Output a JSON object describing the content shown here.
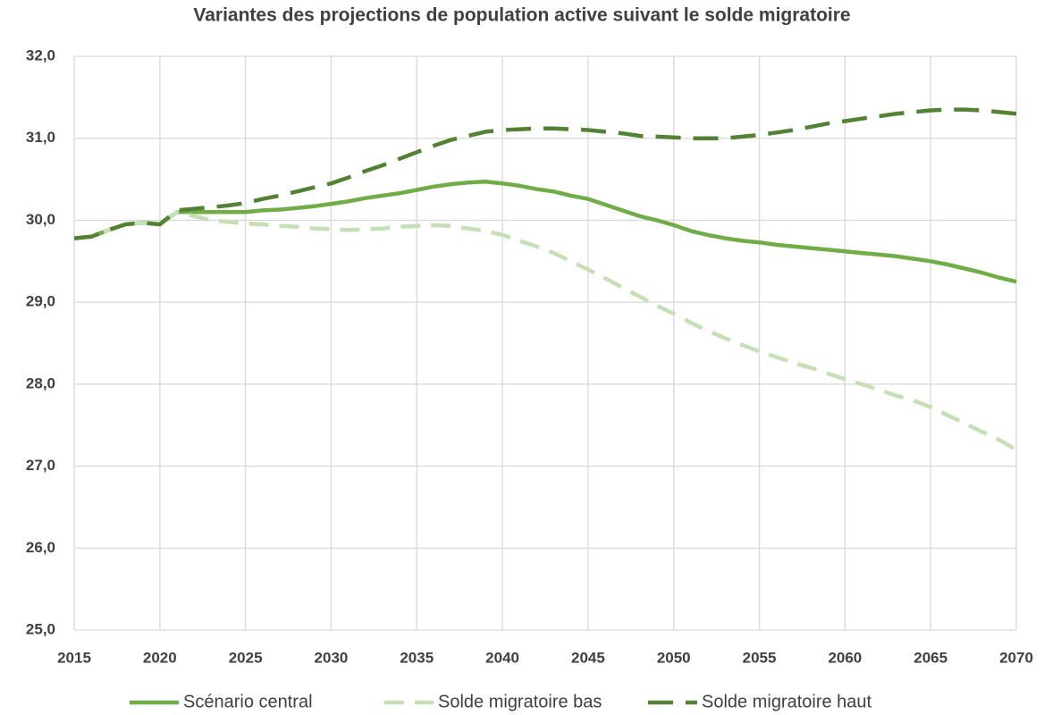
{
  "chart_data": {
    "type": "line",
    "title": "Variantes des projections de population active suivant le solde migratoire",
    "x": [
      2015,
      2016,
      2017,
      2018,
      2019,
      2020,
      2021,
      2022,
      2023,
      2024,
      2025,
      2026,
      2027,
      2028,
      2029,
      2030,
      2031,
      2032,
      2033,
      2034,
      2035,
      2036,
      2037,
      2038,
      2039,
      2040,
      2041,
      2042,
      2043,
      2044,
      2045,
      2046,
      2047,
      2048,
      2049,
      2050,
      2051,
      2052,
      2053,
      2054,
      2055,
      2056,
      2057,
      2058,
      2059,
      2060,
      2061,
      2062,
      2063,
      2064,
      2065,
      2066,
      2067,
      2068,
      2069,
      2070
    ],
    "series": [
      {
        "name": "Scénario central",
        "color": "#70ad47",
        "dash": "solid",
        "values": [
          29.78,
          29.8,
          29.88,
          29.95,
          29.97,
          29.95,
          30.1,
          30.1,
          30.1,
          30.1,
          30.1,
          30.12,
          30.13,
          30.15,
          30.17,
          30.2,
          30.23,
          30.27,
          30.3,
          30.33,
          30.37,
          30.41,
          30.44,
          30.46,
          30.47,
          30.45,
          30.42,
          30.38,
          30.35,
          30.3,
          30.26,
          30.19,
          30.12,
          30.05,
          30.0,
          29.94,
          29.87,
          29.82,
          29.78,
          29.75,
          29.73,
          29.7,
          29.68,
          29.66,
          29.64,
          29.62,
          29.6,
          29.58,
          29.56,
          29.53,
          29.5,
          29.46,
          29.41,
          29.36,
          29.3,
          29.25
        ]
      },
      {
        "name": "Solde migratoire bas",
        "color": "#c5e0b4",
        "dash": "dashed",
        "values": [
          29.78,
          29.8,
          29.88,
          29.95,
          29.97,
          29.95,
          30.1,
          30.05,
          30.0,
          29.98,
          29.96,
          29.95,
          29.93,
          29.92,
          29.9,
          29.89,
          29.88,
          29.89,
          29.9,
          29.92,
          29.93,
          29.94,
          29.93,
          29.9,
          29.87,
          29.82,
          29.75,
          29.68,
          29.6,
          29.5,
          29.4,
          29.29,
          29.18,
          29.07,
          28.96,
          28.86,
          28.75,
          28.65,
          28.56,
          28.48,
          28.4,
          28.33,
          28.26,
          28.2,
          28.13,
          28.06,
          28.0,
          27.93,
          27.86,
          27.8,
          27.72,
          27.62,
          27.52,
          27.42,
          27.32,
          27.2
        ]
      },
      {
        "name": "Solde migratoire haut",
        "color": "#548235",
        "dash": "longdash",
        "values": [
          29.78,
          29.8,
          29.88,
          29.95,
          29.97,
          29.95,
          30.12,
          30.14,
          30.16,
          30.18,
          30.21,
          30.26,
          30.3,
          30.35,
          30.4,
          30.45,
          30.52,
          30.6,
          30.67,
          30.75,
          30.83,
          30.91,
          30.98,
          31.03,
          31.08,
          31.1,
          31.11,
          31.12,
          31.12,
          31.11,
          31.1,
          31.08,
          31.06,
          31.03,
          31.02,
          31.01,
          31.0,
          31.0,
          31.0,
          31.02,
          31.04,
          31.07,
          31.1,
          31.14,
          31.18,
          31.21,
          31.24,
          31.27,
          31.3,
          31.32,
          31.34,
          31.35,
          31.35,
          31.34,
          31.32,
          31.3
        ]
      }
    ],
    "xlim": [
      2015,
      2070
    ],
    "xticks": [
      2015,
      2020,
      2025,
      2030,
      2035,
      2040,
      2045,
      2050,
      2055,
      2060,
      2065,
      2070
    ],
    "ylim": [
      25,
      32
    ],
    "yticks": [
      {
        "value": 25,
        "label": "25,0"
      },
      {
        "value": 26,
        "label": "26,0"
      },
      {
        "value": 27,
        "label": "27,0"
      },
      {
        "value": 28,
        "label": "28,0"
      },
      {
        "value": 29,
        "label": "29,0"
      },
      {
        "value": 30,
        "label": "30,0"
      },
      {
        "value": 31,
        "label": "31,0"
      },
      {
        "value": 32,
        "label": "32,0"
      }
    ],
    "grid": true,
    "legend": "bottom"
  }
}
